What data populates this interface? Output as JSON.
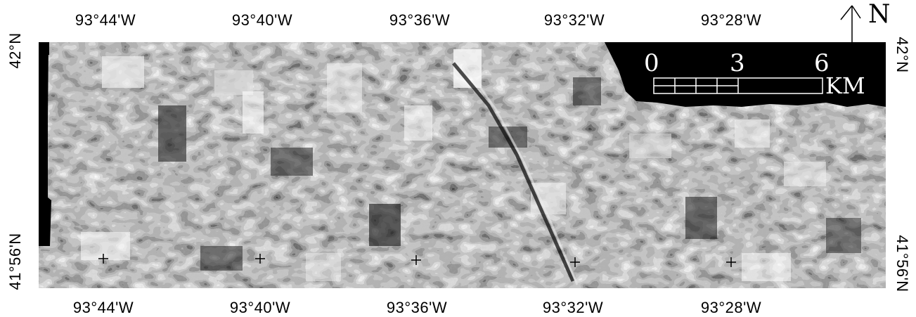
{
  "north": {
    "label": "N",
    "icon": "north-arrow-icon"
  },
  "scale_bar": {
    "ticks": [
      "0",
      "3",
      "6"
    ],
    "unit": "KM"
  },
  "longitude_top": [
    "93°44'W",
    "93°40'W",
    "93°36'W",
    "93°32'W",
    "93°28'W"
  ],
  "longitude_bottom": [
    "93°44'W",
    "93°40'W",
    "93°36'W",
    "93°32'W",
    "93°28'W"
  ],
  "latitude_left": [
    "42°N",
    "41°56'N"
  ],
  "latitude_right": [
    "42°N",
    "41°56'N"
  ],
  "map": {
    "type": "grayscale satellite image",
    "grid_markers": "+"
  }
}
